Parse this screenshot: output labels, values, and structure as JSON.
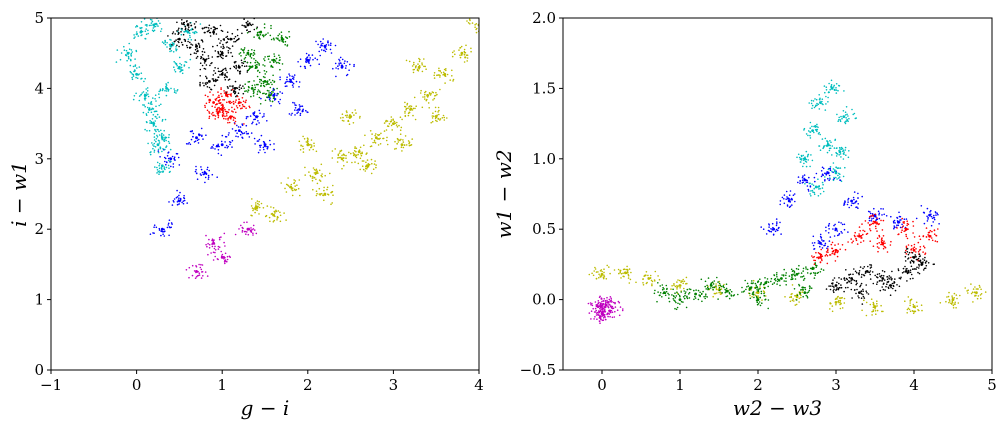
{
  "chart_data": [
    {
      "type": "scatter",
      "xlabel": "g − i",
      "ylabel": "i − w1",
      "xlim": [
        -1,
        4
      ],
      "ylim": [
        0,
        5
      ],
      "xticks": [
        -1,
        0,
        1,
        2,
        3,
        4
      ],
      "yticks": [
        0,
        1,
        2,
        3,
        4,
        5
      ],
      "xtick_labels": [
        "−1",
        "0",
        "1",
        "2",
        "3",
        "4"
      ],
      "ytick_labels": [
        "0",
        "1",
        "2",
        "3",
        "4",
        "5"
      ],
      "grid": false,
      "series": [
        {
          "color": "#bcbc00",
          "points": [
            [
              1.4,
              2.3
            ],
            [
              1.8,
              2.6
            ],
            [
              2.1,
              2.8
            ],
            [
              2.4,
              3.0
            ],
            [
              2.6,
              3.1
            ],
            [
              2.8,
              3.3
            ],
            [
              3.0,
              3.5
            ],
            [
              3.2,
              3.7
            ],
            [
              3.4,
              3.9
            ],
            [
              3.6,
              4.2
            ],
            [
              3.8,
              4.5
            ],
            [
              4.0,
              4.9
            ],
            [
              2.2,
              2.5
            ],
            [
              2.7,
              2.9
            ],
            [
              3.1,
              3.2
            ],
            [
              3.5,
              3.6
            ],
            [
              1.6,
              2.2
            ],
            [
              2.0,
              3.2
            ],
            [
              2.5,
              3.6
            ],
            [
              3.3,
              4.3
            ]
          ]
        },
        {
          "color": "#0000ff",
          "points": [
            [
              0.3,
              2.0
            ],
            [
              0.5,
              2.4
            ],
            [
              0.8,
              2.8
            ],
            [
              1.0,
              3.2
            ],
            [
              1.2,
              3.4
            ],
            [
              1.4,
              3.6
            ],
            [
              1.6,
              3.9
            ],
            [
              1.8,
              4.1
            ],
            [
              2.0,
              4.4
            ],
            [
              2.2,
              4.6
            ],
            [
              0.4,
              3.0
            ],
            [
              0.7,
              3.3
            ],
            [
              1.5,
              3.2
            ],
            [
              1.9,
              3.7
            ],
            [
              2.4,
              4.3
            ]
          ]
        },
        {
          "color": "#00bebe",
          "points": [
            [
              -0.1,
              4.5
            ],
            [
              0.0,
              4.2
            ],
            [
              0.1,
              3.9
            ],
            [
              0.2,
              3.5
            ],
            [
              0.25,
              3.2
            ],
            [
              0.3,
              2.9
            ],
            [
              0.05,
              4.8
            ],
            [
              0.2,
              4.9
            ],
            [
              0.4,
              4.6
            ],
            [
              0.5,
              4.3
            ],
            [
              0.15,
              3.7
            ],
            [
              0.35,
              4.0
            ],
            [
              0.6,
              4.8
            ],
            [
              0.3,
              3.3
            ]
          ]
        },
        {
          "color": "#000000",
          "points": [
            [
              0.5,
              4.7
            ],
            [
              0.7,
              4.6
            ],
            [
              0.8,
              4.4
            ],
            [
              0.9,
              4.8
            ],
            [
              1.0,
              4.5
            ],
            [
              1.1,
              4.7
            ],
            [
              1.2,
              4.3
            ],
            [
              1.3,
              4.9
            ],
            [
              0.6,
              4.9
            ],
            [
              1.0,
              4.2
            ],
            [
              1.15,
              4.0
            ],
            [
              0.85,
              4.1
            ]
          ]
        },
        {
          "color": "#ff0000",
          "points": [
            [
              0.9,
              3.8
            ],
            [
              1.0,
              3.7
            ],
            [
              1.05,
              3.9
            ],
            [
              1.1,
              3.6
            ],
            [
              1.2,
              3.8
            ],
            [
              0.95,
              3.65
            ]
          ]
        },
        {
          "color": "#008000",
          "points": [
            [
              1.3,
              4.5
            ],
            [
              1.4,
              4.3
            ],
            [
              1.5,
              4.1
            ],
            [
              1.6,
              4.4
            ],
            [
              1.7,
              4.7
            ],
            [
              1.45,
              4.8
            ],
            [
              1.55,
              3.9
            ],
            [
              1.35,
              4.0
            ]
          ]
        },
        {
          "color": "#c000c0",
          "points": [
            [
              0.7,
              1.4
            ],
            [
              1.0,
              1.6
            ],
            [
              0.9,
              1.8
            ],
            [
              1.3,
              2.0
            ]
          ]
        }
      ]
    },
    {
      "type": "scatter",
      "xlabel": "w2 − w3",
      "ylabel": "w1 − w2",
      "xlim": [
        -0.5,
        5
      ],
      "ylim": [
        -0.5,
        2.0
      ],
      "xticks": [
        0,
        1,
        2,
        3,
        4,
        5
      ],
      "yticks": [
        -0.5,
        0.0,
        0.5,
        1.0,
        1.5,
        2.0
      ],
      "xtick_labels": [
        "0",
        "1",
        "2",
        "3",
        "4",
        "5"
      ],
      "ytick_labels": [
        "−0.5",
        "0.0",
        "0.5",
        "1.0",
        "1.5",
        "2.0"
      ],
      "grid": false,
      "series": [
        {
          "color": "#c000c0",
          "points": [
            [
              -0.05,
              -0.05
            ],
            [
              0.0,
              -0.1
            ],
            [
              0.05,
              -0.04
            ],
            [
              0.1,
              -0.08
            ],
            [
              -0.02,
              -0.12
            ],
            [
              0.08,
              -0.02
            ]
          ]
        },
        {
          "color": "#bcbc00",
          "points": [
            [
              0.0,
              0.18
            ],
            [
              0.3,
              0.19
            ],
            [
              0.6,
              0.15
            ],
            [
              1.0,
              0.1
            ],
            [
              1.5,
              0.07
            ],
            [
              2.0,
              0.05
            ],
            [
              2.5,
              0.02
            ],
            [
              3.0,
              -0.02
            ],
            [
              3.5,
              -0.05
            ],
            [
              4.0,
              -0.05
            ],
            [
              4.5,
              0.0
            ],
            [
              4.8,
              0.05
            ]
          ]
        },
        {
          "color": "#008000",
          "points": [
            [
              0.8,
              0.05
            ],
            [
              1.2,
              0.04
            ],
            [
              1.6,
              0.06
            ],
            [
              1.9,
              0.08
            ],
            [
              2.1,
              0.12
            ],
            [
              2.3,
              0.15
            ],
            [
              2.5,
              0.18
            ],
            [
              2.7,
              0.22
            ],
            [
              1.4,
              0.1
            ],
            [
              2.0,
              0.0
            ],
            [
              2.6,
              0.05
            ],
            [
              1.0,
              0.0
            ]
          ]
        },
        {
          "color": "#0000ff",
          "points": [
            [
              2.2,
              0.5
            ],
            [
              2.4,
              0.7
            ],
            [
              2.6,
              0.85
            ],
            [
              2.9,
              0.9
            ],
            [
              3.2,
              0.7
            ],
            [
              3.5,
              0.6
            ],
            [
              3.8,
              0.55
            ],
            [
              4.2,
              0.6
            ],
            [
              2.8,
              0.4
            ],
            [
              3.0,
              0.5
            ]
          ]
        },
        {
          "color": "#00bebe",
          "points": [
            [
              2.6,
              1.0
            ],
            [
              2.7,
              1.2
            ],
            [
              2.8,
              1.4
            ],
            [
              2.9,
              1.1
            ],
            [
              3.0,
              0.9
            ],
            [
              3.1,
              1.3
            ],
            [
              2.75,
              0.8
            ],
            [
              2.95,
              1.5
            ],
            [
              3.05,
              1.05
            ]
          ]
        },
        {
          "color": "#ff0000",
          "points": [
            [
              3.0,
              0.35
            ],
            [
              3.3,
              0.45
            ],
            [
              3.6,
              0.4
            ],
            [
              3.9,
              0.5
            ],
            [
              4.2,
              0.45
            ],
            [
              2.8,
              0.3
            ],
            [
              3.5,
              0.55
            ],
            [
              4.0,
              0.35
            ]
          ]
        },
        {
          "color": "#000000",
          "points": [
            [
              3.0,
              0.1
            ],
            [
              3.3,
              0.05
            ],
            [
              3.6,
              0.15
            ],
            [
              3.9,
              0.2
            ],
            [
              4.1,
              0.25
            ],
            [
              3.4,
              0.2
            ],
            [
              3.7,
              0.1
            ],
            [
              4.0,
              0.3
            ],
            [
              3.2,
              0.15
            ]
          ]
        }
      ]
    }
  ]
}
